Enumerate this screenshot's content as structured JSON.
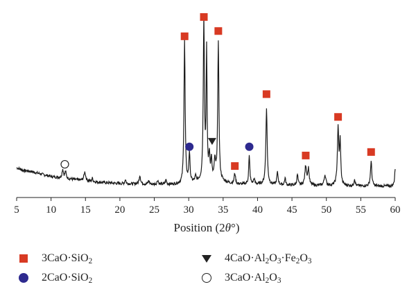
{
  "chart_data": {
    "type": "line",
    "title": "",
    "xlabel_prefix": "Position (2",
    "xlabel_theta": "θ",
    "xlabel_suffix": "°)",
    "ylabel": "",
    "xlim": [
      5,
      60
    ],
    "ylim": [
      0,
      100
    ],
    "xticks": [
      5,
      10,
      15,
      20,
      25,
      30,
      35,
      40,
      45,
      50,
      55,
      60
    ],
    "grid": false,
    "baseline": [
      [
        5,
        13
      ],
      [
        6,
        11.5
      ],
      [
        7,
        11
      ],
      [
        8,
        10
      ],
      [
        9,
        9
      ],
      [
        10,
        8
      ],
      [
        11,
        7.5
      ],
      [
        12,
        7
      ],
      [
        13,
        6.5
      ],
      [
        14,
        6
      ],
      [
        16,
        5
      ],
      [
        18,
        4.5
      ],
      [
        20,
        4
      ],
      [
        22,
        3.8
      ],
      [
        24,
        3.6
      ],
      [
        26,
        3.5
      ],
      [
        28,
        3.5
      ],
      [
        29,
        3.6
      ],
      [
        30,
        4
      ],
      [
        31,
        4.6
      ],
      [
        32,
        5
      ],
      [
        33,
        6
      ],
      [
        34,
        6.5
      ],
      [
        35,
        5
      ],
      [
        36,
        4
      ],
      [
        37,
        3.5
      ],
      [
        38,
        3.5
      ],
      [
        40,
        3.5
      ],
      [
        42,
        3.2
      ],
      [
        44,
        3
      ],
      [
        46,
        3
      ],
      [
        48,
        2.8
      ],
      [
        50,
        2.8
      ],
      [
        52,
        2.7
      ],
      [
        54,
        2.6
      ],
      [
        56,
        2.5
      ],
      [
        58,
        2.5
      ],
      [
        60,
        2.5
      ]
    ],
    "peaks": [
      {
        "x": 11.7,
        "h": 5,
        "w": 0.12
      },
      {
        "x": 12.1,
        "h": 4,
        "w": 0.1
      },
      {
        "x": 14.9,
        "h": 5,
        "w": 0.15
      },
      {
        "x": 16.0,
        "h": 2,
        "w": 0.1
      },
      {
        "x": 20.8,
        "h": 2.5,
        "w": 0.1
      },
      {
        "x": 22.9,
        "h": 5,
        "w": 0.12
      },
      {
        "x": 24.2,
        "h": 2,
        "w": 0.1
      },
      {
        "x": 25.5,
        "h": 2.5,
        "w": 0.1
      },
      {
        "x": 26.7,
        "h": 2.5,
        "w": 0.1
      },
      {
        "x": 29.4,
        "h": 82,
        "w": 0.1
      },
      {
        "x": 30.1,
        "h": 17,
        "w": 0.1
      },
      {
        "x": 31.0,
        "h": 3,
        "w": 0.1
      },
      {
        "x": 32.2,
        "h": 93,
        "w": 0.1
      },
      {
        "x": 32.6,
        "h": 72,
        "w": 0.08
      },
      {
        "x": 33.0,
        "h": 13,
        "w": 0.1
      },
      {
        "x": 33.3,
        "h": 11,
        "w": 0.08
      },
      {
        "x": 33.8,
        "h": 10,
        "w": 0.1
      },
      {
        "x": 34.3,
        "h": 79,
        "w": 0.1
      },
      {
        "x": 36.7,
        "h": 6,
        "w": 0.12
      },
      {
        "x": 38.8,
        "h": 16,
        "w": 0.1
      },
      {
        "x": 39.5,
        "h": 3,
        "w": 0.1
      },
      {
        "x": 41.3,
        "h": 43,
        "w": 0.12
      },
      {
        "x": 42.9,
        "h": 7,
        "w": 0.12
      },
      {
        "x": 44.0,
        "h": 4,
        "w": 0.1
      },
      {
        "x": 45.8,
        "h": 6,
        "w": 0.1
      },
      {
        "x": 47.0,
        "h": 11,
        "w": 0.15
      },
      {
        "x": 47.4,
        "h": 9,
        "w": 0.12
      },
      {
        "x": 49.8,
        "h": 6,
        "w": 0.15
      },
      {
        "x": 51.7,
        "h": 32,
        "w": 0.12
      },
      {
        "x": 52.0,
        "h": 24,
        "w": 0.1
      },
      {
        "x": 54.1,
        "h": 4,
        "w": 0.1
      },
      {
        "x": 56.5,
        "h": 14,
        "w": 0.12
      },
      {
        "x": 60.0,
        "h": 10,
        "w": 0.1
      }
    ],
    "markers": [
      {
        "phase": "3CaO·SiO2",
        "x": 29.4,
        "y": 88
      },
      {
        "phase": "3CaO·SiO2",
        "x": 32.2,
        "y": 99
      },
      {
        "phase": "3CaO·SiO2",
        "x": 34.3,
        "y": 91
      },
      {
        "phase": "3CaO·SiO2",
        "x": 36.7,
        "y": 14
      },
      {
        "phase": "3CaO·SiO2",
        "x": 41.3,
        "y": 55
      },
      {
        "phase": "3CaO·SiO2",
        "x": 47.0,
        "y": 20
      },
      {
        "phase": "3CaO·SiO2",
        "x": 51.7,
        "y": 42
      },
      {
        "phase": "3CaO·SiO2",
        "x": 56.5,
        "y": 22
      },
      {
        "phase": "2CaO·SiO2",
        "x": 30.1,
        "y": 25
      },
      {
        "phase": "2CaO·SiO2",
        "x": 38.8,
        "y": 25
      },
      {
        "phase": "4CaO·Al2O3·Fe2O3",
        "x": 33.4,
        "y": 28
      },
      {
        "phase": "3CaO·Al2O3",
        "x": 12.0,
        "y": 15
      }
    ],
    "colors": {
      "line": "#1a1a1a",
      "c3s": "#d83a23",
      "c2s": "#2e2a8f",
      "c4af": "#222222",
      "c3a": "#222222"
    }
  },
  "legend": {
    "c3s": {
      "a": "3CaO·SiO",
      "b": "2",
      "c": ""
    },
    "c2s": {
      "a": "2CaO·SiO",
      "b": "2",
      "c": ""
    },
    "c4af": {
      "a": "4CaO·Al",
      "b": "2",
      "c": "O",
      "d": "3",
      "e": "·Fe",
      "f": "2",
      "g": "O",
      "h": "3"
    },
    "c3a": {
      "a": "3CaO·Al",
      "b": "2",
      "c": "O",
      "d": "3"
    }
  }
}
